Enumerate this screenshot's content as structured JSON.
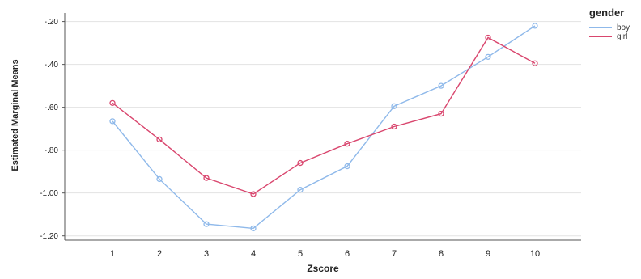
{
  "chart_data": {
    "type": "line",
    "title": "",
    "xlabel": "Zscore",
    "ylabel": "Estimated Marginal Means",
    "x": [
      1,
      2,
      3,
      4,
      5,
      6,
      7,
      8,
      9,
      10
    ],
    "x_ticks": [
      "1",
      "2",
      "3",
      "4",
      "5",
      "6",
      "7",
      "8",
      "9",
      "10"
    ],
    "ylim": [
      -1.22,
      -0.16
    ],
    "y_ticks": [
      -1.2,
      -1.0,
      -0.8,
      -0.6,
      -0.4,
      -0.2
    ],
    "y_tick_labels": [
      "-1.20",
      "-1.00",
      "-.80",
      "-.60",
      "-.40",
      "-.20"
    ],
    "grid": "horizontal",
    "legend_title": "gender",
    "legend_placement": "top-right",
    "series": [
      {
        "name": "boy",
        "color": "#8fb9ea",
        "values": [
          -0.665,
          -0.935,
          -1.145,
          -1.165,
          -0.985,
          -0.875,
          -0.595,
          -0.5,
          -0.365,
          -0.22
        ]
      },
      {
        "name": "girl",
        "color": "#d9466e",
        "values": [
          -0.58,
          -0.75,
          -0.93,
          -1.005,
          -0.86,
          -0.77,
          -0.69,
          -0.63,
          -0.275,
          -0.395
        ]
      }
    ]
  }
}
